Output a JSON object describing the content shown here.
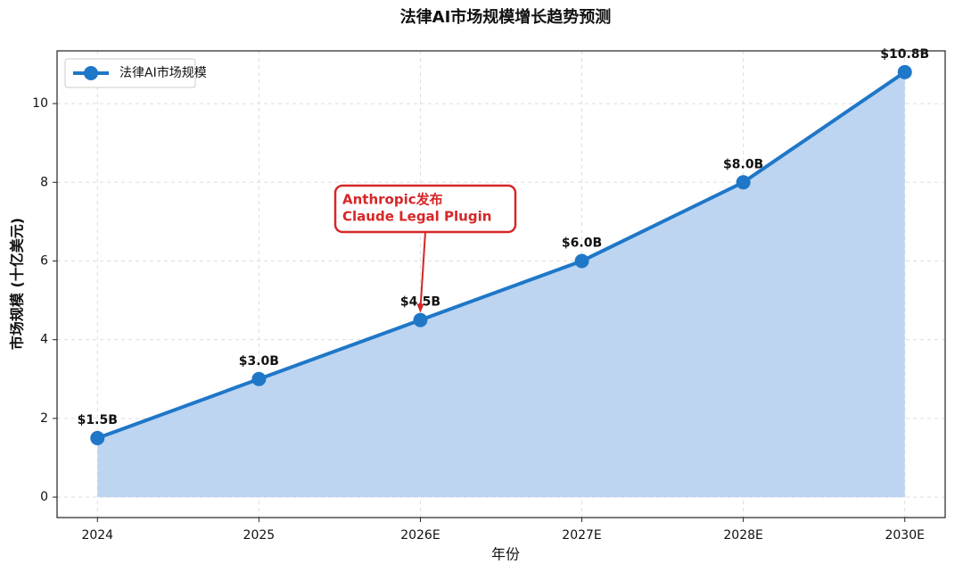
{
  "chart_data": {
    "type": "line",
    "title": "法律AI市场规模增长趋势预测",
    "xlabel": "年份",
    "ylabel": "市场规模 (十亿美元)",
    "categories": [
      "2024",
      "2025",
      "2026E",
      "2027E",
      "2028E",
      "2030E"
    ],
    "series": [
      {
        "name": "法律AI市场规模",
        "color": "#1f77c8",
        "fill": "#b9d3f0",
        "values": [
          1.5,
          3.0,
          4.5,
          6.0,
          8.0,
          10.8
        ],
        "value_labels": [
          "$1.5B",
          "$3.0B",
          "$4.5B",
          "$6.0B",
          "$8.0B",
          "$10.8B"
        ]
      }
    ],
    "annotation": [
      "Anthropic发布",
      "Claude Legal Plugin"
    ],
    "ylim": [
      -0.52,
      11.34
    ],
    "yticks": [
      0,
      2,
      4,
      6,
      8,
      10
    ],
    "grid": true,
    "legend": "upper left"
  }
}
